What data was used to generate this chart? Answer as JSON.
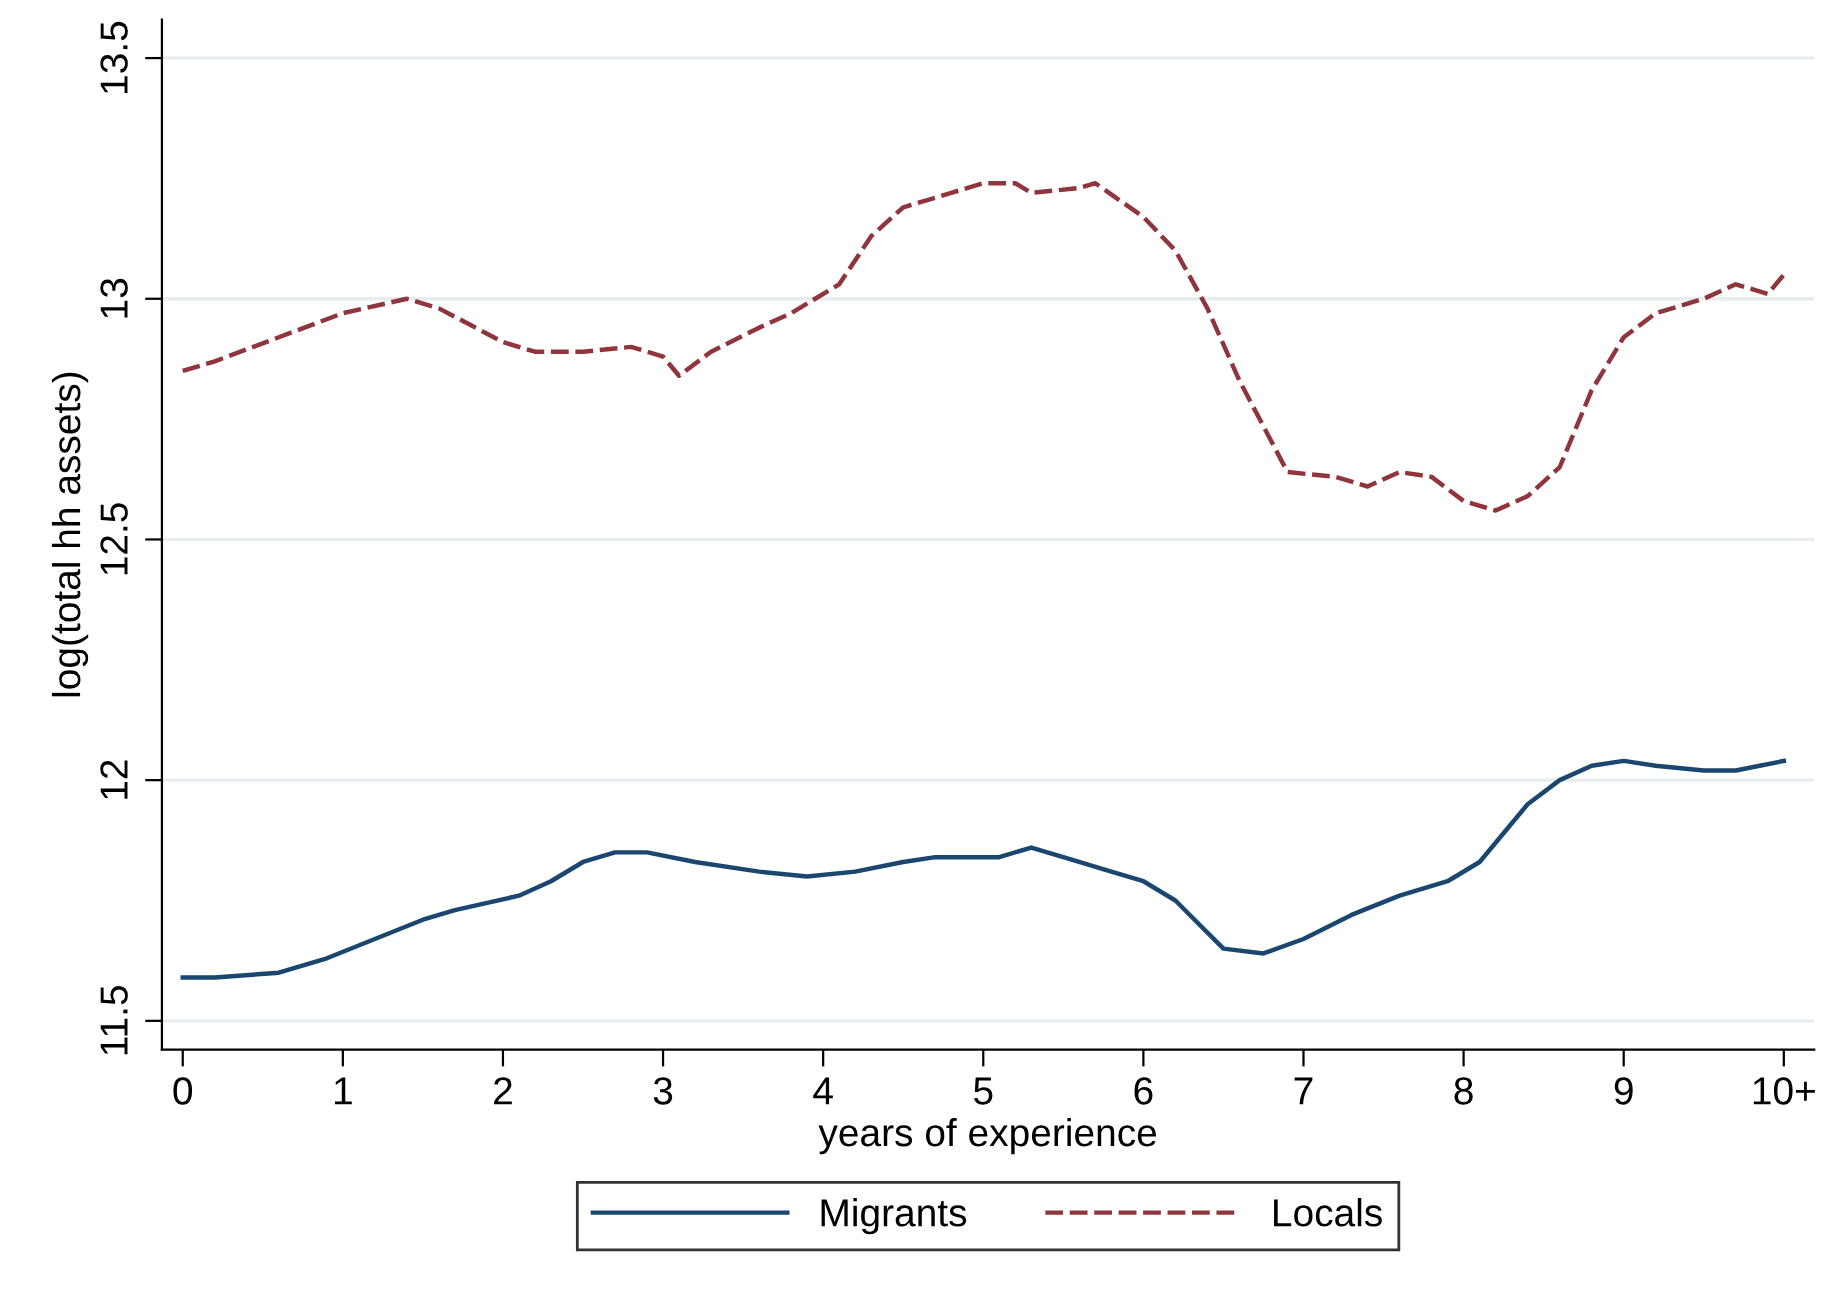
{
  "chart_data": {
    "type": "line",
    "xlabel": "years of experience",
    "ylabel": "log(total hh assets)",
    "xlim": [
      -0.13,
      10.19
    ],
    "ylim": [
      11.44,
      13.58
    ],
    "xticks": [
      0,
      1,
      2,
      3,
      4,
      5,
      6,
      7,
      8,
      9,
      {
        "value": 10,
        "label": "10+"
      }
    ],
    "yticks": [
      11.5,
      12,
      12.5,
      13,
      13.5
    ],
    "grid": "y",
    "legend": "bottom",
    "series": [
      {
        "name": "Migrants",
        "color": "#1a476f",
        "line_style": "solid",
        "x": [
          0,
          0.2,
          0.6,
          0.9,
          1.2,
          1.5,
          1.7,
          2.1,
          2.3,
          2.5,
          2.7,
          2.9,
          3.2,
          3.6,
          3.9,
          4.2,
          4.5,
          4.7,
          5.1,
          5.3,
          5.5,
          5.8,
          6.0,
          6.2,
          6.5,
          6.75,
          7.0,
          7.3,
          7.6,
          7.9,
          8.1,
          8.4,
          8.6,
          8.8,
          9.0,
          9.2,
          9.5,
          9.7,
          10.0
        ],
        "values": [
          11.59,
          11.59,
          11.6,
          11.63,
          11.67,
          11.71,
          11.73,
          11.76,
          11.79,
          11.83,
          11.85,
          11.85,
          11.83,
          11.81,
          11.8,
          11.81,
          11.83,
          11.84,
          11.84,
          11.86,
          11.84,
          11.81,
          11.79,
          11.75,
          11.65,
          11.64,
          11.67,
          11.72,
          11.76,
          11.79,
          11.83,
          11.95,
          12.0,
          12.03,
          12.04,
          12.03,
          12.02,
          12.02,
          12.04
        ]
      },
      {
        "name": "Locals",
        "color": "#90353b",
        "line_style": "dashed",
        "x": [
          0,
          0.2,
          0.6,
          1.0,
          1.4,
          1.6,
          2.0,
          2.2,
          2.5,
          2.8,
          3.0,
          3.1,
          3.3,
          3.6,
          3.8,
          4.1,
          4.3,
          4.5,
          4.8,
          5.0,
          5.2,
          5.3,
          5.6,
          5.7,
          6.0,
          6.2,
          6.4,
          6.6,
          6.9,
          7.2,
          7.4,
          7.6,
          7.8,
          8.0,
          8.2,
          8.4,
          8.6,
          8.8,
          9.0,
          9.2,
          9.5,
          9.7,
          9.9,
          10.0
        ],
        "values": [
          12.85,
          12.87,
          12.92,
          12.97,
          13.0,
          12.98,
          12.91,
          12.89,
          12.89,
          12.9,
          12.88,
          12.84,
          12.89,
          12.94,
          12.97,
          13.03,
          13.13,
          13.19,
          13.22,
          13.24,
          13.24,
          13.22,
          13.23,
          13.24,
          13.17,
          13.1,
          12.98,
          12.83,
          12.64,
          12.63,
          12.61,
          12.64,
          12.63,
          12.58,
          12.56,
          12.59,
          12.65,
          12.81,
          12.92,
          12.97,
          13.0,
          13.03,
          13.01,
          13.05
        ]
      }
    ]
  }
}
